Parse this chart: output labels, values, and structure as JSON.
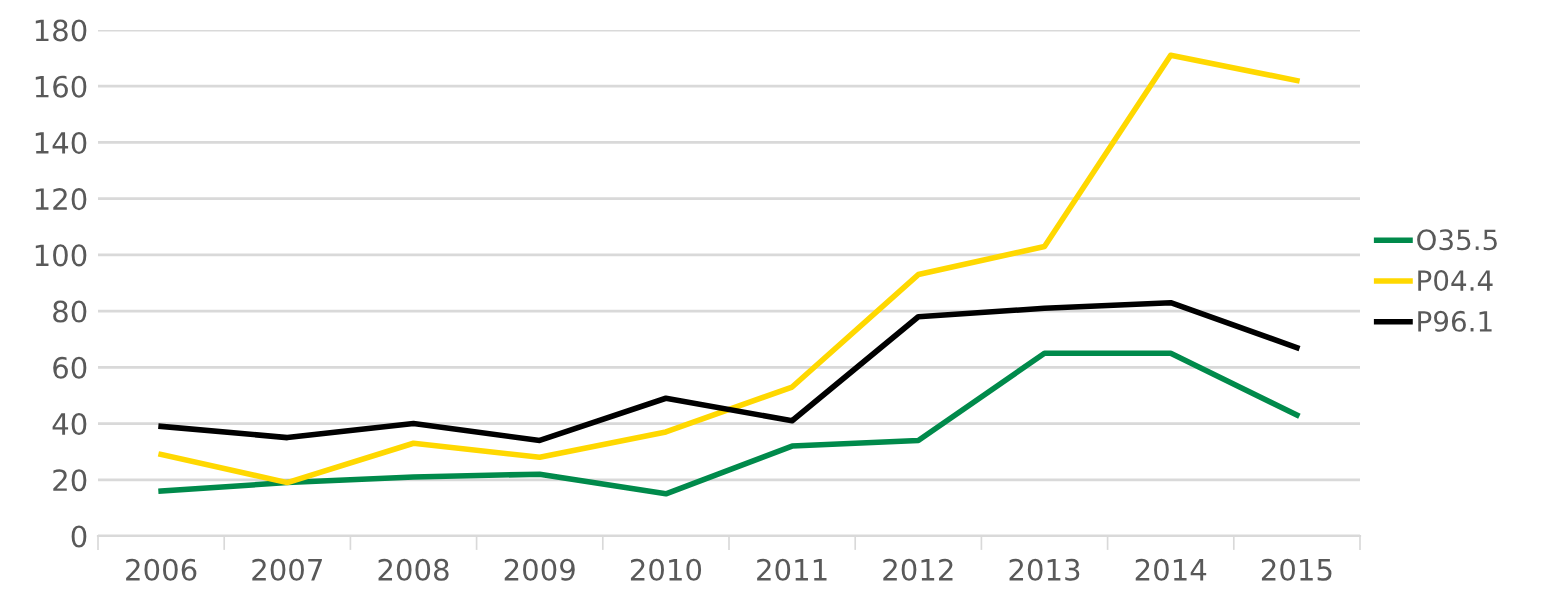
{
  "chart_data": {
    "type": "line",
    "categories": [
      "2006",
      "2007",
      "2008",
      "2009",
      "2010",
      "2011",
      "2012",
      "2013",
      "2014",
      "2015"
    ],
    "series": [
      {
        "name": "O35.5",
        "color": "#008a4b",
        "values": [
          16,
          19,
          21,
          22,
          15,
          32,
          34,
          65,
          65,
          43
        ]
      },
      {
        "name": "P04.4",
        "color": "#ffd800",
        "values": [
          29,
          19,
          33,
          28,
          37,
          53,
          93,
          103,
          171,
          162
        ]
      },
      {
        "name": "P96.1",
        "color": "#000000",
        "values": [
          39,
          35,
          40,
          34,
          49,
          41,
          78,
          81,
          83,
          67
        ]
      }
    ],
    "ylim": [
      0,
      180
    ],
    "yticks": [
      0,
      20,
      40,
      60,
      80,
      100,
      120,
      140,
      160,
      180
    ],
    "grid": "y",
    "legend": "right",
    "marker": "none",
    "line_style": "solid"
  }
}
